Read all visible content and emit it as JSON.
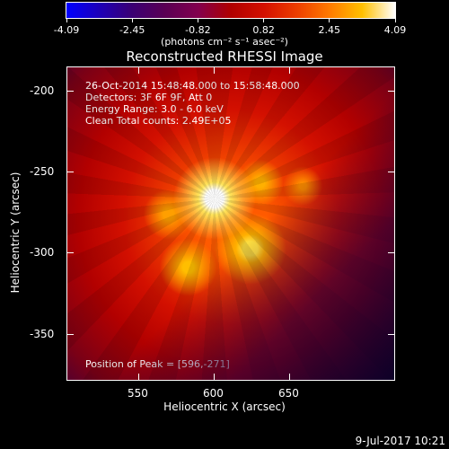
{
  "colorbar": {
    "ticks": [
      "-4.09",
      "-2.45",
      "-0.82",
      "0.82",
      "2.45",
      "4.09"
    ],
    "unit": "(photons cm⁻² s⁻¹ asec⁻²)"
  },
  "image": {
    "title": "Reconstructed RHESSI Image",
    "info_lines": [
      "26-Oct-2014 15:48:48.000 to 15:58:48.000",
      "Detectors: 3F 6F 9F, Att 0",
      "Energy Range: 3.0 - 6.0 keV",
      "Clean    Total counts: 2.49E+05"
    ],
    "peak_text": "Position of Peak = [596,-271]"
  },
  "axes": {
    "xlabel": "Heliocentric X (arcsec)",
    "ylabel": "Heliocentric Y (arcsec)",
    "xticks": [
      "550",
      "600",
      "650"
    ],
    "yticks": [
      "-200",
      "-250",
      "-300",
      "-350"
    ]
  },
  "footer": {
    "timestamp": "9-Jul-2017 10:21"
  }
}
